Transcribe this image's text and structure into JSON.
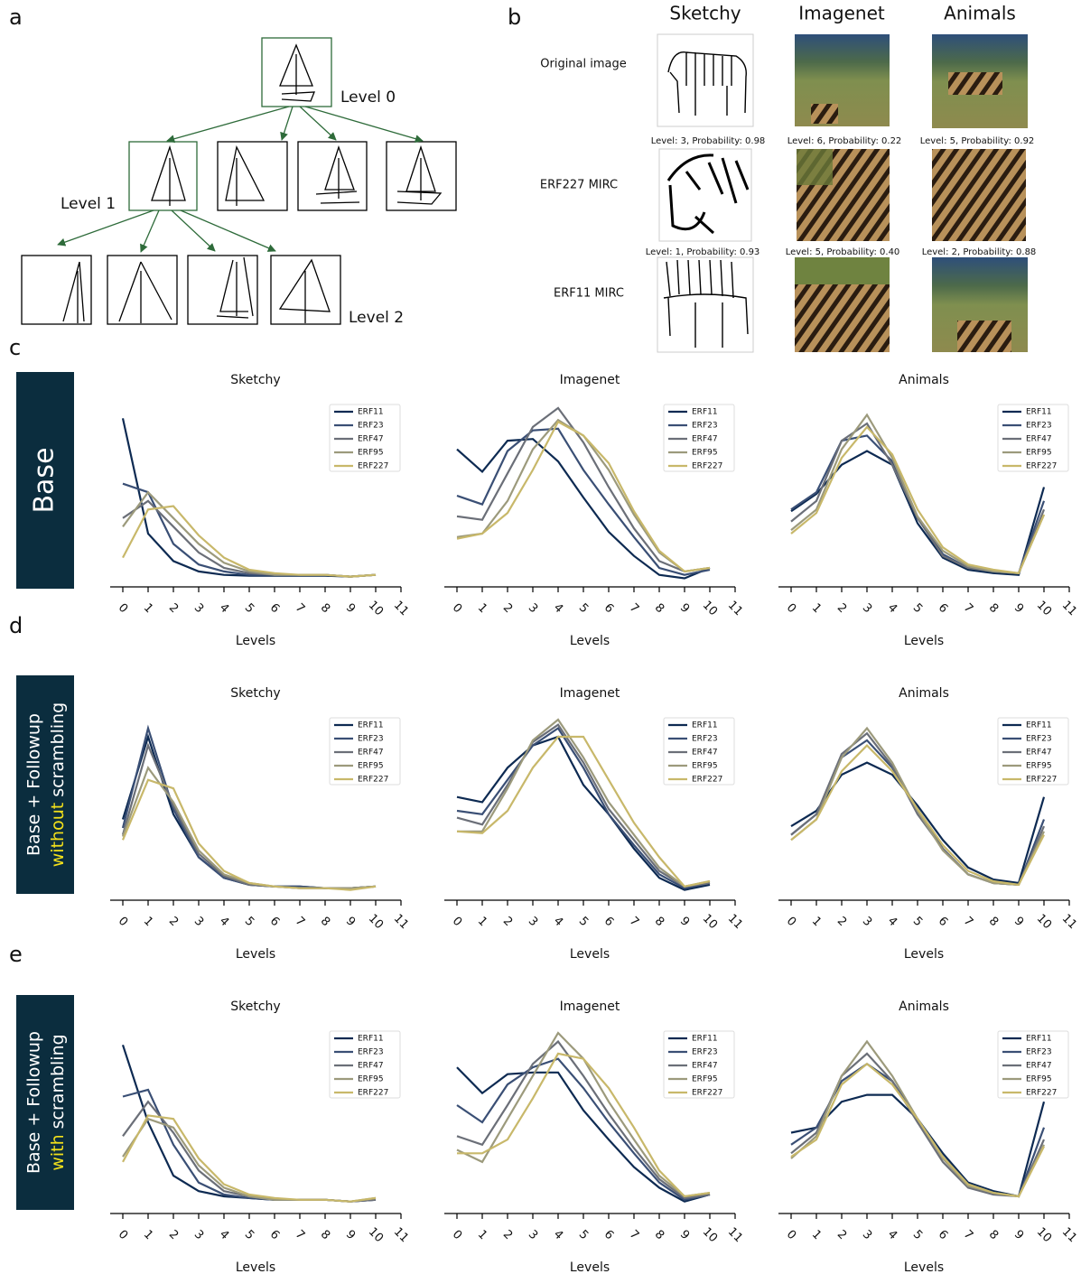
{
  "panel_labels": [
    "a",
    "b",
    "c",
    "d",
    "e"
  ],
  "panel_a": {
    "levels": [
      "Level 0",
      "Level 1",
      "Level 2"
    ]
  },
  "panel_b": {
    "columns": [
      "Sketchy",
      "Imagenet",
      "Animals"
    ],
    "rows": [
      "Original image",
      "ERF227 MIRC",
      "ERF11 MIRC"
    ],
    "captions": [
      [
        "Level: 3, Probability: 0.98",
        "Level: 6, Probability: 0.22",
        "Level: 5, Probability: 0.92"
      ],
      [
        "Level: 1, Probability: 0.93",
        "Level: 5, Probability: 0.40",
        "Level: 2, Probability: 0.88"
      ]
    ]
  },
  "row_labels": [
    {
      "line1": "Base"
    },
    {
      "line1": "Base + Followup",
      "highlight": "without",
      "rest": "scrambling"
    },
    {
      "line1": "Base + Followup",
      "highlight": "with",
      "rest": "scrambling"
    }
  ],
  "chart_data": [
    {
      "type": "line",
      "title": "Sketchy",
      "xlabel": "Levels",
      "x": [
        0,
        1,
        2,
        3,
        4,
        5,
        6,
        7,
        8,
        9,
        10
      ],
      "xlim": [
        -0.5,
        11
      ],
      "ylim": [
        -0.05,
        1
      ],
      "xticks": [
        0,
        1,
        2,
        3,
        4,
        5,
        6,
        7,
        8,
        9,
        10,
        11
      ],
      "series": [
        {
          "name": "ERF11",
          "color": "#0d2a52",
          "values": [
            0.93,
            0.26,
            0.1,
            0.04,
            0.02,
            0.015,
            0.015,
            0.015,
            0.015,
            0.01,
            0.02
          ]
        },
        {
          "name": "ERF23",
          "color": "#3a4f75",
          "values": [
            0.55,
            0.5,
            0.2,
            0.08,
            0.04,
            0.02,
            0.02,
            0.02,
            0.02,
            0.01,
            0.02
          ]
        },
        {
          "name": "ERF47",
          "color": "#6b6f78",
          "values": [
            0.35,
            0.45,
            0.3,
            0.15,
            0.06,
            0.03,
            0.02,
            0.02,
            0.02,
            0.01,
            0.02
          ]
        },
        {
          "name": "ERF95",
          "color": "#9c9a7c",
          "values": [
            0.3,
            0.5,
            0.35,
            0.2,
            0.09,
            0.04,
            0.02,
            0.02,
            0.02,
            0.01,
            0.02
          ]
        },
        {
          "name": "ERF227",
          "color": "#c8b86a",
          "values": [
            0.12,
            0.4,
            0.42,
            0.25,
            0.12,
            0.05,
            0.03,
            0.02,
            0.02,
            0.01,
            0.02
          ]
        }
      ]
    },
    {
      "type": "line",
      "title": "Imagenet",
      "xlabel": "Levels",
      "x": [
        0,
        1,
        2,
        3,
        4,
        5,
        6,
        7,
        8,
        9,
        10
      ],
      "xlim": [
        -0.5,
        11
      ],
      "ylim": [
        -0.05,
        1
      ],
      "xticks": [
        0,
        1,
        2,
        3,
        4,
        5,
        6,
        7,
        8,
        9,
        10,
        11
      ],
      "series": [
        {
          "name": "ERF11",
          "color": "#0d2a52",
          "values": [
            0.75,
            0.62,
            0.8,
            0.81,
            0.68,
            0.47,
            0.27,
            0.13,
            0.02,
            0,
            0.06
          ]
        },
        {
          "name": "ERF23",
          "color": "#3a4f75",
          "values": [
            0.48,
            0.43,
            0.74,
            0.86,
            0.87,
            0.63,
            0.43,
            0.24,
            0.06,
            0.02,
            0.05
          ]
        },
        {
          "name": "ERF47",
          "color": "#6b6f78",
          "values": [
            0.36,
            0.34,
            0.61,
            0.88,
            0.99,
            0.79,
            0.53,
            0.29,
            0.1,
            0.04,
            0.06
          ]
        },
        {
          "name": "ERF95",
          "color": "#9c9a7c",
          "values": [
            0.24,
            0.26,
            0.45,
            0.75,
            0.92,
            0.83,
            0.63,
            0.37,
            0.15,
            0.04,
            0.06
          ]
        },
        {
          "name": "ERF227",
          "color": "#c8b86a",
          "values": [
            0.23,
            0.26,
            0.38,
            0.63,
            0.91,
            0.83,
            0.67,
            0.39,
            0.16,
            0.04,
            0.06
          ]
        }
      ]
    },
    {
      "type": "line",
      "title": "Animals",
      "xlabel": "Levels",
      "x": [
        0,
        1,
        2,
        3,
        4,
        5,
        6,
        7,
        8,
        9,
        10
      ],
      "xlim": [
        -0.5,
        11
      ],
      "ylim": [
        -0.05,
        1
      ],
      "xticks": [
        0,
        1,
        2,
        3,
        4,
        5,
        6,
        7,
        8,
        9,
        10,
        11
      ],
      "series": [
        {
          "name": "ERF11",
          "color": "#0d2a52",
          "values": [
            0.39,
            0.49,
            0.66,
            0.74,
            0.66,
            0.32,
            0.12,
            0.05,
            0.03,
            0.02,
            0.53
          ]
        },
        {
          "name": "ERF23",
          "color": "#3a4f75",
          "values": [
            0.4,
            0.5,
            0.8,
            0.83,
            0.68,
            0.35,
            0.14,
            0.06,
            0.04,
            0.03,
            0.45
          ]
        },
        {
          "name": "ERF47",
          "color": "#6b6f78",
          "values": [
            0.33,
            0.45,
            0.8,
            0.9,
            0.66,
            0.35,
            0.13,
            0.06,
            0.04,
            0.03,
            0.4
          ]
        },
        {
          "name": "ERF95",
          "color": "#9c9a7c",
          "values": [
            0.28,
            0.4,
            0.75,
            0.95,
            0.7,
            0.36,
            0.16,
            0.07,
            0.04,
            0.03,
            0.37
          ]
        },
        {
          "name": "ERF227",
          "color": "#c8b86a",
          "values": [
            0.26,
            0.38,
            0.7,
            0.88,
            0.72,
            0.4,
            0.18,
            0.08,
            0.05,
            0.03,
            0.37
          ]
        }
      ]
    },
    {
      "type": "line",
      "title": "Sketchy",
      "xlabel": "Levels",
      "x": [
        0,
        1,
        2,
        3,
        4,
        5,
        6,
        7,
        8,
        9,
        10
      ],
      "xlim": [
        -0.5,
        11
      ],
      "ylim": [
        -0.05,
        1
      ],
      "xticks": [
        0,
        1,
        2,
        3,
        4,
        5,
        6,
        7,
        8,
        9,
        10,
        11
      ],
      "series": [
        {
          "name": "ERF11",
          "color": "#0d2a52",
          "values": [
            0.42,
            0.9,
            0.45,
            0.2,
            0.08,
            0.04,
            0.03,
            0.03,
            0.02,
            0.02,
            0.03
          ]
        },
        {
          "name": "ERF23",
          "color": "#3a4f75",
          "values": [
            0.37,
            0.95,
            0.48,
            0.2,
            0.08,
            0.04,
            0.03,
            0.03,
            0.02,
            0.02,
            0.03
          ]
        },
        {
          "name": "ERF47",
          "color": "#6b6f78",
          "values": [
            0.33,
            0.85,
            0.5,
            0.22,
            0.09,
            0.04,
            0.03,
            0.02,
            0.02,
            0.02,
            0.03
          ]
        },
        {
          "name": "ERF95",
          "color": "#9c9a7c",
          "values": [
            0.32,
            0.72,
            0.52,
            0.24,
            0.1,
            0.05,
            0.03,
            0.02,
            0.02,
            0.02,
            0.03
          ]
        },
        {
          "name": "ERF227",
          "color": "#c8b86a",
          "values": [
            0.3,
            0.65,
            0.6,
            0.28,
            0.12,
            0.05,
            0.03,
            0.02,
            0.02,
            0.01,
            0.03
          ]
        }
      ]
    },
    {
      "type": "line",
      "title": "Imagenet",
      "xlabel": "Levels",
      "x": [
        0,
        1,
        2,
        3,
        4,
        5,
        6,
        7,
        8,
        9,
        10
      ],
      "xlim": [
        -0.5,
        11
      ],
      "ylim": [
        -0.05,
        1
      ],
      "xticks": [
        0,
        1,
        2,
        3,
        4,
        5,
        6,
        7,
        8,
        9,
        10,
        11
      ],
      "series": [
        {
          "name": "ERF11",
          "color": "#0d2a52",
          "values": [
            0.55,
            0.52,
            0.72,
            0.85,
            0.9,
            0.62,
            0.45,
            0.25,
            0.08,
            0.01,
            0.04
          ]
        },
        {
          "name": "ERF23",
          "color": "#3a4f75",
          "values": [
            0.47,
            0.45,
            0.65,
            0.85,
            0.95,
            0.72,
            0.45,
            0.27,
            0.1,
            0.02,
            0.05
          ]
        },
        {
          "name": "ERF47",
          "color": "#6b6f78",
          "values": [
            0.43,
            0.39,
            0.62,
            0.87,
            0.97,
            0.75,
            0.48,
            0.3,
            0.12,
            0.03,
            0.05
          ]
        },
        {
          "name": "ERF95",
          "color": "#9c9a7c",
          "values": [
            0.35,
            0.35,
            0.6,
            0.88,
            1.0,
            0.78,
            0.52,
            0.33,
            0.14,
            0.03,
            0.06
          ]
        },
        {
          "name": "ERF227",
          "color": "#c8b86a",
          "values": [
            0.35,
            0.34,
            0.47,
            0.72,
            0.9,
            0.9,
            0.65,
            0.4,
            0.2,
            0.03,
            0.06
          ]
        }
      ]
    },
    {
      "type": "line",
      "title": "Animals",
      "xlabel": "Levels",
      "x": [
        0,
        1,
        2,
        3,
        4,
        5,
        6,
        7,
        8,
        9,
        10
      ],
      "xlim": [
        -0.5,
        11
      ],
      "ylim": [
        -0.05,
        1
      ],
      "xticks": [
        0,
        1,
        2,
        3,
        4,
        5,
        6,
        7,
        8,
        9,
        10,
        11
      ],
      "series": [
        {
          "name": "ERF11",
          "color": "#0d2a52",
          "values": [
            0.38,
            0.47,
            0.68,
            0.75,
            0.68,
            0.5,
            0.3,
            0.14,
            0.07,
            0.05,
            0.55
          ]
        },
        {
          "name": "ERF23",
          "color": "#3a4f75",
          "values": [
            0.33,
            0.45,
            0.78,
            0.88,
            0.72,
            0.48,
            0.25,
            0.1,
            0.05,
            0.04,
            0.42
          ]
        },
        {
          "name": "ERF47",
          "color": "#6b6f78",
          "values": [
            0.33,
            0.45,
            0.8,
            0.92,
            0.73,
            0.45,
            0.25,
            0.1,
            0.05,
            0.04,
            0.38
          ]
        },
        {
          "name": "ERF95",
          "color": "#9c9a7c",
          "values": [
            0.3,
            0.42,
            0.78,
            0.95,
            0.75,
            0.47,
            0.24,
            0.1,
            0.05,
            0.04,
            0.35
          ]
        },
        {
          "name": "ERF227",
          "color": "#c8b86a",
          "values": [
            0.3,
            0.42,
            0.7,
            0.85,
            0.7,
            0.48,
            0.27,
            0.12,
            0.06,
            0.04,
            0.33
          ]
        }
      ]
    },
    {
      "type": "line",
      "title": "Sketchy",
      "xlabel": "Levels",
      "x": [
        0,
        1,
        2,
        3,
        4,
        5,
        6,
        7,
        8,
        9,
        10
      ],
      "xlim": [
        -0.5,
        11
      ],
      "ylim": [
        -0.05,
        1
      ],
      "xticks": [
        0,
        1,
        2,
        3,
        4,
        5,
        6,
        7,
        8,
        9,
        10,
        11
      ],
      "series": [
        {
          "name": "ERF11",
          "color": "#0d2a52",
          "values": [
            0.93,
            0.48,
            0.17,
            0.08,
            0.05,
            0.04,
            0.03,
            0.03,
            0.03,
            0.02,
            0.03
          ]
        },
        {
          "name": "ERF23",
          "color": "#3a4f75",
          "values": [
            0.63,
            0.67,
            0.35,
            0.13,
            0.06,
            0.04,
            0.03,
            0.03,
            0.03,
            0.02,
            0.03
          ]
        },
        {
          "name": "ERF47",
          "color": "#6b6f78",
          "values": [
            0.4,
            0.6,
            0.42,
            0.2,
            0.08,
            0.05,
            0.03,
            0.03,
            0.03,
            0.02,
            0.03
          ]
        },
        {
          "name": "ERF95",
          "color": "#9c9a7c",
          "values": [
            0.28,
            0.5,
            0.45,
            0.23,
            0.1,
            0.05,
            0.03,
            0.03,
            0.03,
            0.02,
            0.04
          ]
        },
        {
          "name": "ERF227",
          "color": "#c8b86a",
          "values": [
            0.25,
            0.52,
            0.5,
            0.27,
            0.12,
            0.06,
            0.04,
            0.03,
            0.03,
            0.02,
            0.04
          ]
        }
      ]
    },
    {
      "type": "line",
      "title": "Imagenet",
      "xlabel": "Levels",
      "x": [
        0,
        1,
        2,
        3,
        4,
        5,
        6,
        7,
        8,
        9,
        10
      ],
      "xlim": [
        -0.5,
        11
      ],
      "ylim": [
        -0.05,
        1
      ],
      "xticks": [
        0,
        1,
        2,
        3,
        4,
        5,
        6,
        7,
        8,
        9,
        10,
        11
      ],
      "series": [
        {
          "name": "ERF11",
          "color": "#0d2a52",
          "values": [
            0.8,
            0.65,
            0.76,
            0.77,
            0.77,
            0.55,
            0.38,
            0.22,
            0.1,
            0.02,
            0.06
          ]
        },
        {
          "name": "ERF23",
          "color": "#3a4f75",
          "values": [
            0.58,
            0.48,
            0.7,
            0.8,
            0.85,
            0.68,
            0.48,
            0.3,
            0.13,
            0.03,
            0.06
          ]
        },
        {
          "name": "ERF47",
          "color": "#6b6f78",
          "values": [
            0.4,
            0.35,
            0.58,
            0.82,
            0.95,
            0.75,
            0.53,
            0.33,
            0.15,
            0.04,
            0.06
          ]
        },
        {
          "name": "ERF95",
          "color": "#9c9a7c",
          "values": [
            0.32,
            0.25,
            0.5,
            0.75,
            1.0,
            0.85,
            0.6,
            0.38,
            0.17,
            0.05,
            0.07
          ]
        },
        {
          "name": "ERF227",
          "color": "#c8b86a",
          "values": [
            0.3,
            0.3,
            0.38,
            0.62,
            0.88,
            0.85,
            0.68,
            0.45,
            0.2,
            0.05,
            0.07
          ]
        }
      ]
    },
    {
      "type": "line",
      "title": "Animals",
      "xlabel": "Levels",
      "x": [
        0,
        1,
        2,
        3,
        4,
        5,
        6,
        7,
        8,
        9,
        10
      ],
      "xlim": [
        -0.5,
        11
      ],
      "ylim": [
        -0.05,
        1
      ],
      "xticks": [
        0,
        1,
        2,
        3,
        4,
        5,
        6,
        7,
        8,
        9,
        10,
        11
      ],
      "series": [
        {
          "name": "ERF11",
          "color": "#0d2a52",
          "values": [
            0.42,
            0.45,
            0.6,
            0.64,
            0.64,
            0.5,
            0.3,
            0.13,
            0.08,
            0.05,
            0.6
          ]
        },
        {
          "name": "ERF23",
          "color": "#3a4f75",
          "values": [
            0.35,
            0.45,
            0.72,
            0.82,
            0.72,
            0.5,
            0.28,
            0.12,
            0.07,
            0.05,
            0.45
          ]
        },
        {
          "name": "ERF47",
          "color": "#6b6f78",
          "values": [
            0.3,
            0.42,
            0.75,
            0.88,
            0.72,
            0.48,
            0.25,
            0.1,
            0.06,
            0.05,
            0.38
          ]
        },
        {
          "name": "ERF95",
          "color": "#9c9a7c",
          "values": [
            0.27,
            0.4,
            0.75,
            0.95,
            0.75,
            0.5,
            0.27,
            0.11,
            0.07,
            0.05,
            0.35
          ]
        },
        {
          "name": "ERF227",
          "color": "#c8b86a",
          "values": [
            0.28,
            0.38,
            0.7,
            0.82,
            0.7,
            0.5,
            0.28,
            0.12,
            0.07,
            0.05,
            0.34
          ]
        }
      ]
    }
  ]
}
